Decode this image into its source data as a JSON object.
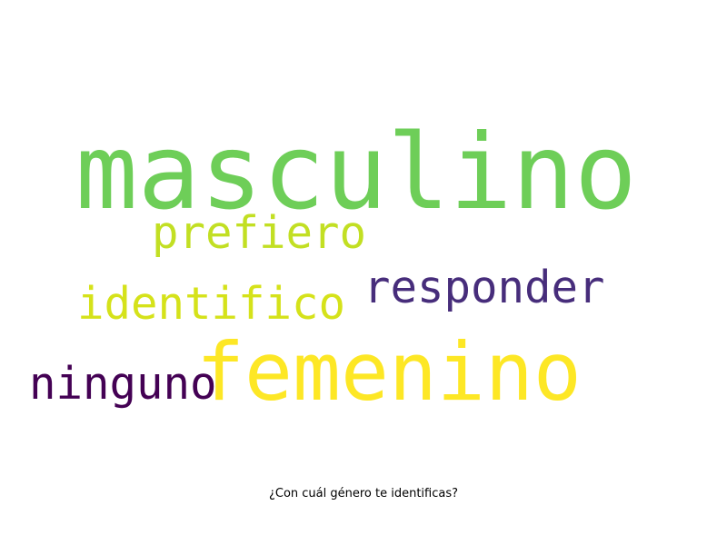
{
  "caption": "¿Con cuál género te identificas?",
  "words": [
    {
      "id": "masculino",
      "text": "masculino",
      "color": "#6ece58"
    },
    {
      "id": "femenino",
      "text": "femenino",
      "color": "#fde725"
    },
    {
      "id": "prefiero",
      "text": "prefiero",
      "color": "#c2df23"
    },
    {
      "id": "responder",
      "text": "responder",
      "color": "#472d7b"
    },
    {
      "id": "identifico",
      "text": "identifico",
      "color": "#d5e21a"
    },
    {
      "id": "ninguno",
      "text": "ninguno",
      "color": "#440154"
    }
  ]
}
